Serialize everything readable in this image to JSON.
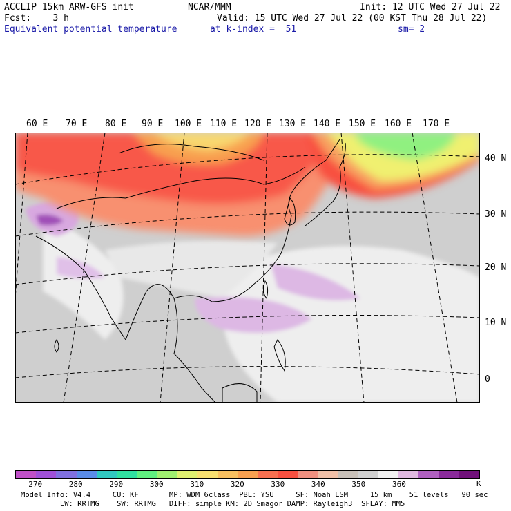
{
  "header": {
    "line1_left": "ACCLIP 15km ARW-GFS init",
    "line1_mid": "NCAR/MMM",
    "line1_right": "Init: 12 UTC Wed 27 Jul 22",
    "line2_left": "Fcst:    3 h",
    "line2_right": "Valid: 15 UTC Wed 27 Jul 22 (00 KST Thu 28 Jul 22)",
    "line3_left": "Equivalent potential temperature",
    "line3_mid": "at k-index =  51",
    "line3_right": "sm= 2"
  },
  "map": {
    "lon_labels": [
      "60 E",
      "70 E",
      "80 E",
      "90 E",
      "100 E",
      "110 E",
      "120 E",
      "130 E",
      "140 E",
      "150 E",
      "160 E",
      "170 E"
    ],
    "lat_labels": [
      "40 N",
      "30 N",
      "20 N",
      "10 N",
      "0"
    ]
  },
  "colorbar": {
    "colors": [
      "#c050c8",
      "#a050d8",
      "#8070e0",
      "#5a8ce8",
      "#30c8c0",
      "#30e0a0",
      "#60f080",
      "#a0f070",
      "#e0f070",
      "#f8e070",
      "#f8c060",
      "#f8a050",
      "#f87050",
      "#f85040",
      "#f09080",
      "#f0c0a8",
      "#c8c0b8",
      "#d0d0d0",
      "#f0f0f0",
      "#e0b8e0",
      "#b060c0",
      "#8a2a9a",
      "#70107a"
    ],
    "labels": [
      "270",
      "280",
      "290",
      "300",
      "310",
      "320",
      "330",
      "340",
      "350",
      "360"
    ],
    "unit": "K"
  },
  "footer": {
    "line1": "Model Info: V4.4     CU: KF       MP: WDM 6class  PBL: YSU     SF: Noah LSM     15 km    51 levels   90 sec",
    "line2": "         LW: RRTMG    SW: RRTMG   DIFF: simple KM: 2D Smagor DAMP: Rayleigh3  SFLAY: MM5"
  }
}
